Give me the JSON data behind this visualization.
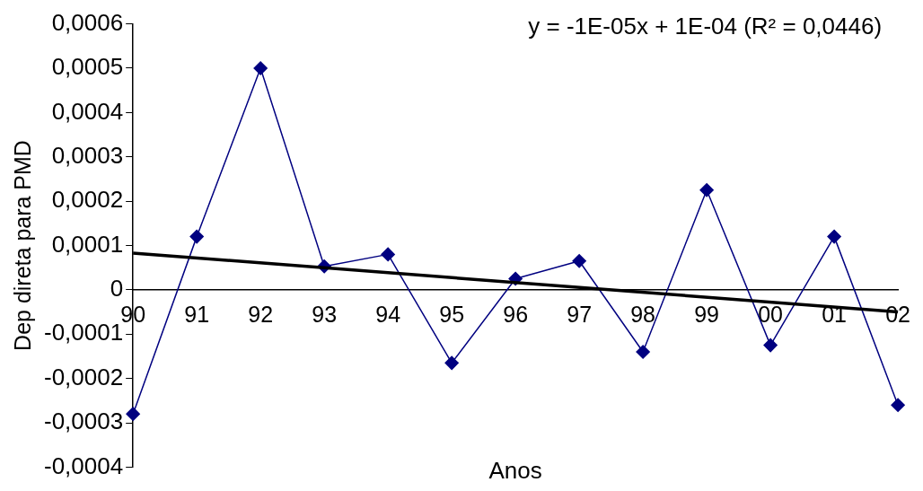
{
  "chart_data": {
    "type": "line",
    "xlabel": "Anos",
    "ylabel": "Dep direta para PMD",
    "categories": [
      "90",
      "91",
      "92",
      "93",
      "94",
      "95",
      "96",
      "97",
      "98",
      "99",
      "00",
      "01",
      "02"
    ],
    "series": [
      {
        "color": "#000080",
        "values": [
          -0.00028,
          0.00012,
          0.0005,
          5.3e-05,
          8e-05,
          -0.000165,
          2.5e-05,
          6.5e-05,
          -0.00014,
          0.000225,
          -0.000125,
          0.00012,
          -0.00026
        ],
        "marker": "diamond"
      },
      {
        "type": "line",
        "color": "#000000",
        "x": [
          "90",
          "02"
        ],
        "values": [
          8.3e-05,
          -5e-05
        ],
        "marker": "none"
      }
    ],
    "ylim": [
      -0.0004,
      0.0006
    ],
    "yticks": [
      {
        "value": -0.0004,
        "label": "-0,0004"
      },
      {
        "value": -0.0003,
        "label": "-0,0003"
      },
      {
        "value": -0.0002,
        "label": "-0,0002"
      },
      {
        "value": -0.0001,
        "label": "-0,0001"
      },
      {
        "value": 0,
        "label": "0"
      },
      {
        "value": 0.0001,
        "label": "0,0001"
      },
      {
        "value": 0.0002,
        "label": "0,0002"
      },
      {
        "value": 0.0003,
        "label": "0,0003"
      },
      {
        "value": 0.0004,
        "label": "0,0004"
      },
      {
        "value": 0.0005,
        "label": "0,0005"
      },
      {
        "value": 0.0006,
        "label": "0,0006"
      }
    ],
    "annotations": [
      "y = -1E-05x + 1E-04 (R² = 0,0446)"
    ],
    "grid": false,
    "legend": false
  }
}
